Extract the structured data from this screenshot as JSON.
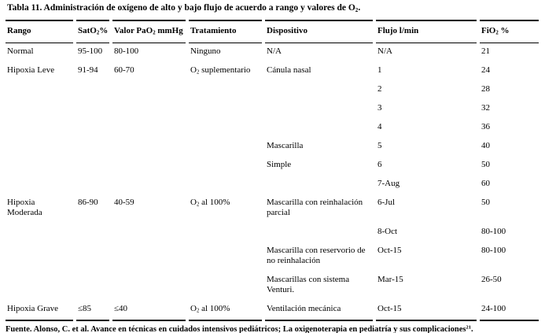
{
  "title": {
    "segments": [
      {
        "text": "Tabla 11. Administración de oxígeno de alto y bajo flujo de acuerdo a rango y valores de O"
      },
      {
        "sub": "2"
      },
      {
        "text": "."
      }
    ]
  },
  "table": {
    "column_keys": [
      "rango",
      "sato2",
      "pao2",
      "tratamiento",
      "dispositivo",
      "flujo",
      "fio2"
    ],
    "headers": [
      [
        {
          "text": "Rango"
        }
      ],
      [
        {
          "text": "SatO"
        },
        {
          "sub": "2"
        },
        {
          "text": "%"
        }
      ],
      [
        {
          "text": "Valor PaO"
        },
        {
          "sub": "2"
        },
        {
          "text": " mmHg"
        }
      ],
      [
        {
          "text": "Tratamiento"
        }
      ],
      [
        {
          "text": "Dispositivo"
        }
      ],
      [
        {
          "text": "Flujo l/min"
        }
      ],
      [
        {
          "text": "FiO"
        },
        {
          "sub": "2"
        },
        {
          "text": " %"
        }
      ]
    ],
    "rows": [
      {
        "cells": [
          "Normal",
          "95-100",
          "80-100",
          "Ninguno",
          "N/A",
          "N/A",
          "21"
        ]
      },
      {
        "cells": [
          "Hipoxia Leve",
          "91-94",
          "60-70",
          [
            {
              "text": "O"
            },
            {
              "sub": "2"
            },
            {
              "text": " suplementario"
            }
          ],
          "Cánula nasal",
          "1",
          "24"
        ]
      },
      {
        "cells": [
          "",
          "",
          "",
          "",
          "",
          "2",
          "28"
        ]
      },
      {
        "cells": [
          "",
          "",
          "",
          "",
          "",
          "3",
          "32"
        ]
      },
      {
        "cells": [
          "",
          "",
          "",
          "",
          "",
          "4",
          "36"
        ]
      },
      {
        "cells": [
          "",
          "",
          "",
          "",
          "Mascarilla",
          "5",
          "40"
        ]
      },
      {
        "cells": [
          "",
          "",
          "",
          "",
          "Simple",
          "6",
          "50"
        ]
      },
      {
        "cells": [
          "",
          "",
          "",
          "",
          "",
          "7-Aug",
          "60"
        ]
      },
      {
        "cells": [
          "Hipoxia Moderada",
          "86-90",
          "40-59",
          [
            {
              "text": "O"
            },
            {
              "sub": "2"
            },
            {
              "text": " al 100%"
            }
          ],
          "Mascarilla con reinhalación parcial",
          "6-Jul",
          "50"
        ]
      },
      {
        "cells": [
          "",
          "",
          "",
          "",
          "",
          "8-Oct",
          "80-100"
        ]
      },
      {
        "cells": [
          "",
          "",
          "",
          "",
          "Mascarilla con reservorio de no reinhalación",
          "Oct-15",
          "80-100"
        ]
      },
      {
        "cells": [
          "",
          "",
          "",
          "",
          "Mascarillas con sistema Venturi.",
          "Mar-15",
          "26-50"
        ]
      },
      {
        "cells": [
          "Hipoxia Grave",
          "≤85",
          "≤40",
          [
            {
              "text": "O"
            },
            {
              "sub": "2"
            },
            {
              "text": " al 100%"
            }
          ],
          "Ventilación mecánica",
          "Oct-15",
          "24-100"
        ]
      }
    ]
  },
  "footer": {
    "segments": [
      {
        "text": "Fuente. Alonso, C. et al. Avance en técnicas en cuidados intensivos pediátricos; La oxigenoterapia en pediatría y sus complicaciones"
      },
      {
        "sup": "21"
      },
      {
        "text": "."
      }
    ]
  }
}
